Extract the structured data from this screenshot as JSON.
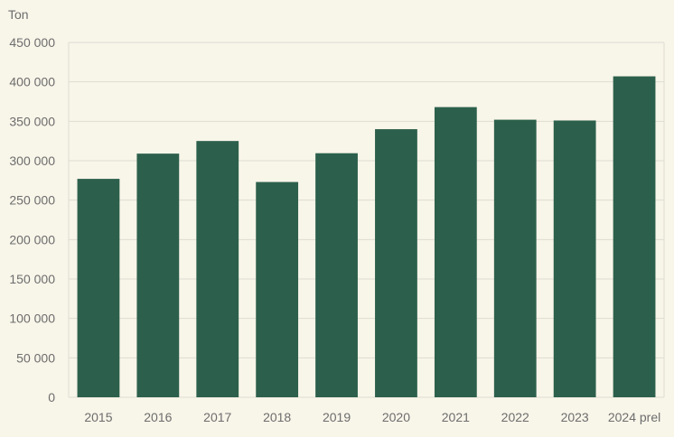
{
  "chart_data": {
    "type": "bar",
    "ylabel": "Ton",
    "categories": [
      "2015",
      "2016",
      "2017",
      "2018",
      "2019",
      "2020",
      "2021",
      "2022",
      "2023",
      "2024 prel"
    ],
    "values": [
      277000,
      309000,
      325000,
      273000,
      309500,
      340000,
      368000,
      352000,
      351000,
      407000
    ],
    "ylim": [
      0,
      450000
    ],
    "yticks": [
      0,
      50000,
      100000,
      150000,
      200000,
      250000,
      300000,
      350000,
      400000,
      450000
    ],
    "ytick_labels": [
      "0",
      "50 000",
      "100 000",
      "150 000",
      "200 000",
      "250 000",
      "300 000",
      "350 000",
      "400 000",
      "450 000"
    ],
    "grid": true,
    "legend": "none",
    "colors": {
      "bar": "#2c604c",
      "background": "#f8f5e9",
      "grid": "#deddd2",
      "text": "#6d6d6d"
    }
  }
}
